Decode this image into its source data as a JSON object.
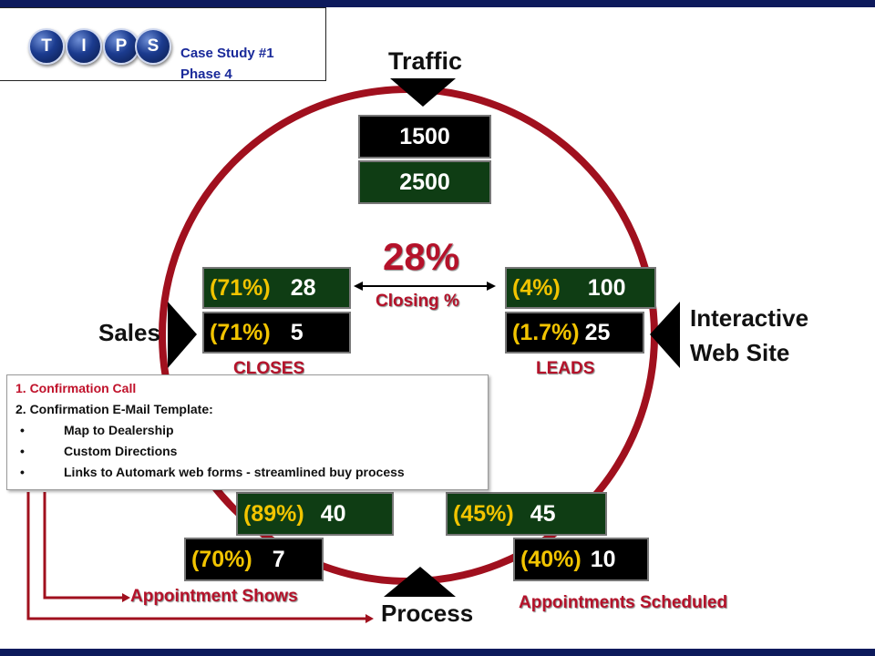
{
  "colors": {
    "header_bar": "#0d1a5c",
    "circle": "#a0101e",
    "percent": "#f2c400",
    "dark_green": "#0f3d14",
    "red_text": "#b5122a"
  },
  "logo": {
    "letters": [
      "T",
      "I",
      "P",
      "S"
    ]
  },
  "case": {
    "line1": "Case Study #1",
    "line2": "Phase 4"
  },
  "labels": {
    "traffic": "Traffic",
    "sales": "Sales",
    "interactive_1": "Interactive",
    "interactive_2": "Web Site",
    "process": "Process",
    "closes": "CLOSES",
    "leads": "LEADS",
    "closing_pct": "28%",
    "closing_label": "Closing %",
    "appt_shows": "Appointment Shows",
    "appt_scheduled": "Appointments Scheduled"
  },
  "traffic": {
    "top": "1500",
    "bottom": "2500"
  },
  "closes": {
    "top_pct": "(71%)",
    "top_val": "28",
    "bottom_pct": "(71%)",
    "bottom_val": "5"
  },
  "leads": {
    "top_pct": "(4%)",
    "top_val": "100",
    "bottom_pct": "(1.7%)",
    "bottom_val": "25"
  },
  "shows": {
    "top_pct": "(89%)",
    "top_val": "40",
    "bottom_pct": "(70%)",
    "bottom_val": "7"
  },
  "scheduled": {
    "top_pct": "(45%)",
    "top_val": "45",
    "bottom_pct": "(40%)",
    "bottom_val": "10"
  },
  "callout": {
    "item1": "1. Confirmation Call",
    "item2": "2. Confirmation E-Mail Template:",
    "bullets": [
      "Map to Dealership",
      "Custom Directions",
      "Links to Automark web forms - streamlined buy process"
    ]
  }
}
